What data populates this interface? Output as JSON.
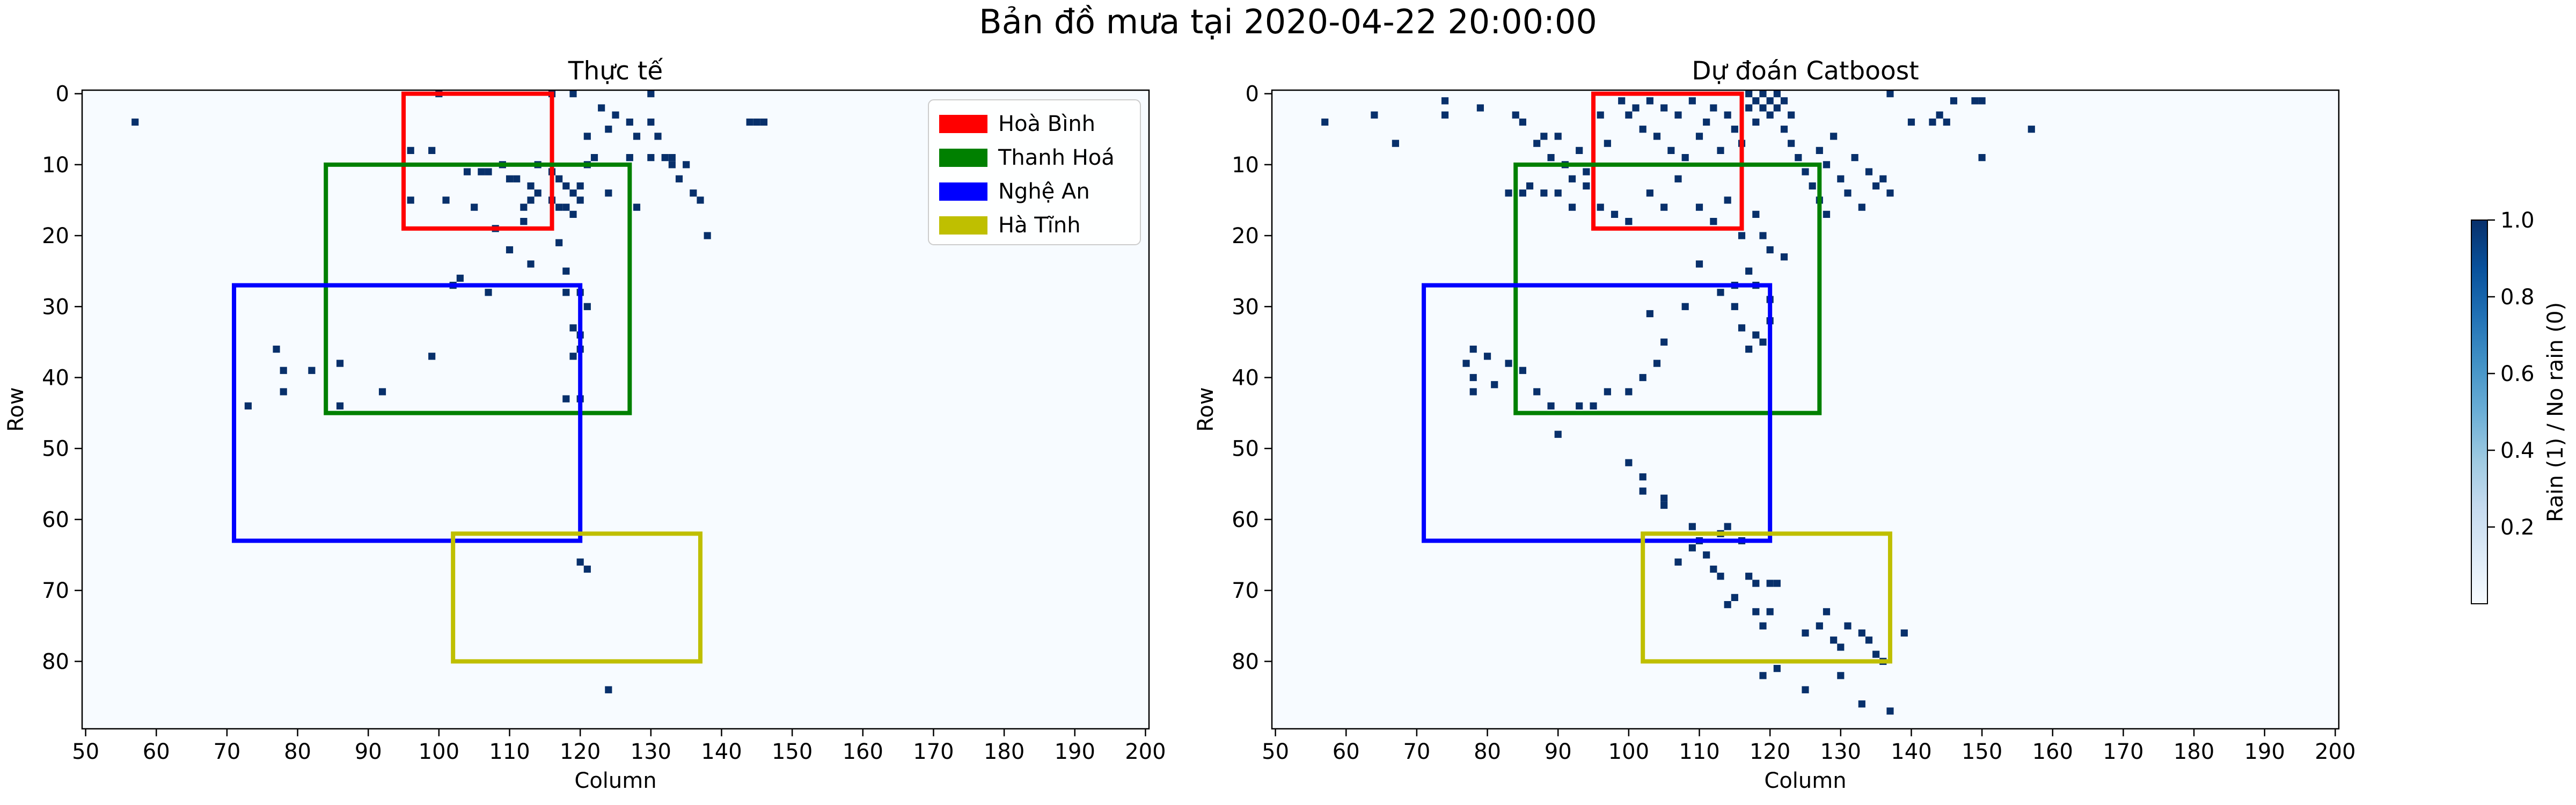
{
  "figure_title": "Bản đồ mưa tại 2020-04-22 20:00:00",
  "colors": {
    "rain": "#08306b",
    "no_rain": "#f7fbff",
    "colorbar_stops": [
      "#f7fbff",
      "#deebf7",
      "#c6dbef",
      "#9ecae1",
      "#6baed6",
      "#4292c6",
      "#2171b5",
      "#08519c",
      "#08306b"
    ]
  },
  "regions": [
    {
      "name": "Hoà Bình",
      "color": "#ff0000",
      "x0": 95,
      "x1": 116,
      "y0": 0,
      "y1": 19
    },
    {
      "name": "Thanh Hoá",
      "color": "#008000",
      "x0": 84,
      "x1": 127,
      "y0": 10,
      "y1": 45
    },
    {
      "name": "Nghệ An",
      "color": "#0000ff",
      "x0": 71,
      "x1": 120,
      "y0": 27,
      "y1": 63
    },
    {
      "name": "Hà Tĩnh",
      "color": "#bfbf00",
      "x0": 102,
      "x1": 137,
      "y0": 62,
      "y1": 80
    }
  ],
  "chart_data": [
    {
      "type": "heatmap",
      "title": "Thực tế",
      "xlabel": "Column",
      "ylabel": "Row",
      "xlim": [
        49.5,
        200.5
      ],
      "ylim": [
        89.5,
        -0.5
      ],
      "xticks": [
        50,
        60,
        70,
        80,
        90,
        100,
        110,
        120,
        130,
        140,
        150,
        160,
        170,
        180,
        190,
        200
      ],
      "yticks": [
        0,
        10,
        20,
        30,
        40,
        50,
        60,
        70,
        80
      ],
      "legend": "top-right",
      "rain_cells": [
        [
          57,
          4
        ],
        [
          100,
          0
        ],
        [
          116,
          0
        ],
        [
          119,
          0
        ],
        [
          121,
          6
        ],
        [
          123,
          2
        ],
        [
          124,
          5
        ],
        [
          124,
          14
        ],
        [
          125,
          3
        ],
        [
          127,
          4
        ],
        [
          127,
          9
        ],
        [
          128,
          6
        ],
        [
          128,
          16
        ],
        [
          130,
          0
        ],
        [
          130,
          9
        ],
        [
          130,
          4
        ],
        [
          131,
          6
        ],
        [
          132,
          9
        ],
        [
          133,
          10
        ],
        [
          133,
          9
        ],
        [
          134,
          12
        ],
        [
          135,
          10
        ],
        [
          136,
          14
        ],
        [
          137,
          15
        ],
        [
          138,
          20
        ],
        [
          144,
          4
        ],
        [
          145,
          4
        ],
        [
          146,
          4
        ],
        [
          96,
          8
        ],
        [
          99,
          8
        ],
        [
          96,
          15
        ],
        [
          101,
          15
        ],
        [
          104,
          11
        ],
        [
          106,
          11
        ],
        [
          107,
          11
        ],
        [
          109,
          10
        ],
        [
          110,
          12
        ],
        [
          111,
          12
        ],
        [
          113,
          13
        ],
        [
          113,
          15
        ],
        [
          114,
          14
        ],
        [
          114,
          10
        ],
        [
          116,
          11
        ],
        [
          117,
          16
        ],
        [
          118,
          13
        ],
        [
          119,
          14
        ],
        [
          120,
          13
        ],
        [
          121,
          10
        ],
        [
          122,
          9
        ],
        [
          119,
          17
        ],
        [
          118,
          16
        ],
        [
          116,
          15
        ],
        [
          112,
          16
        ],
        [
          120,
          15
        ],
        [
          117,
          12
        ],
        [
          105,
          16
        ],
        [
          108,
          19
        ],
        [
          112,
          18
        ],
        [
          102,
          27
        ],
        [
          103,
          26
        ],
        [
          107,
          28
        ],
        [
          110,
          22
        ],
        [
          113,
          24
        ],
        [
          117,
          21
        ],
        [
          118,
          25
        ],
        [
          118,
          28
        ],
        [
          119,
          33
        ],
        [
          120,
          28
        ],
        [
          120,
          34
        ],
        [
          119,
          37
        ],
        [
          120,
          36
        ],
        [
          121,
          30
        ],
        [
          118,
          43
        ],
        [
          120,
          43
        ],
        [
          77,
          36
        ],
        [
          78,
          39
        ],
        [
          78,
          42
        ],
        [
          73,
          44
        ],
        [
          82,
          39
        ],
        [
          86,
          38
        ],
        [
          86,
          44
        ],
        [
          92,
          42
        ],
        [
          99,
          37
        ],
        [
          120,
          66
        ],
        [
          121,
          67
        ],
        [
          124,
          84
        ]
      ]
    },
    {
      "type": "heatmap",
      "title": "Dự đoán Catboost",
      "xlabel": "Column",
      "ylabel": "Row",
      "xlim": [
        49.5,
        200.5
      ],
      "ylim": [
        89.5,
        -0.5
      ],
      "xticks": [
        50,
        60,
        70,
        80,
        90,
        100,
        110,
        120,
        130,
        140,
        150,
        160,
        170,
        180,
        190,
        200
      ],
      "yticks": [
        0,
        10,
        20,
        30,
        40,
        50,
        60,
        70,
        80
      ],
      "rain_cells": [
        [
          57,
          4
        ],
        [
          64,
          3
        ],
        [
          67,
          7
        ],
        [
          74,
          1
        ],
        [
          74,
          3
        ],
        [
          79,
          2
        ],
        [
          84,
          3
        ],
        [
          85,
          4
        ],
        [
          87,
          7
        ],
        [
          88,
          6
        ],
        [
          89,
          9
        ],
        [
          90,
          6
        ],
        [
          91,
          10
        ],
        [
          92,
          12
        ],
        [
          93,
          8
        ],
        [
          94,
          11
        ],
        [
          96,
          3
        ],
        [
          97,
          7
        ],
        [
          99,
          1
        ],
        [
          100,
          3
        ],
        [
          101,
          2
        ],
        [
          102,
          5
        ],
        [
          103,
          1
        ],
        [
          104,
          6
        ],
        [
          105,
          2
        ],
        [
          106,
          8
        ],
        [
          107,
          3
        ],
        [
          108,
          9
        ],
        [
          109,
          1
        ],
        [
          110,
          6
        ],
        [
          111,
          4
        ],
        [
          112,
          2
        ],
        [
          113,
          8
        ],
        [
          114,
          3
        ],
        [
          115,
          5
        ],
        [
          116,
          7
        ],
        [
          117,
          0
        ],
        [
          117,
          2
        ],
        [
          118,
          1
        ],
        [
          118,
          4
        ],
        [
          119,
          0
        ],
        [
          119,
          2
        ],
        [
          120,
          1
        ],
        [
          120,
          3
        ],
        [
          121,
          0
        ],
        [
          121,
          2
        ],
        [
          122,
          1
        ],
        [
          122,
          5
        ],
        [
          123,
          3
        ],
        [
          123,
          7
        ],
        [
          124,
          9
        ],
        [
          125,
          11
        ],
        [
          126,
          13
        ],
        [
          127,
          8
        ],
        [
          127,
          15
        ],
        [
          128,
          10
        ],
        [
          128,
          17
        ],
        [
          129,
          6
        ],
        [
          130,
          12
        ],
        [
          131,
          14
        ],
        [
          132,
          9
        ],
        [
          133,
          16
        ],
        [
          134,
          11
        ],
        [
          135,
          13
        ],
        [
          136,
          12
        ],
        [
          137,
          0
        ],
        [
          137,
          14
        ],
        [
          140,
          4
        ],
        [
          143,
          4
        ],
        [
          144,
          3
        ],
        [
          145,
          4
        ],
        [
          146,
          1
        ],
        [
          149,
          1
        ],
        [
          150,
          1
        ],
        [
          150,
          9
        ],
        [
          157,
          5
        ],
        [
          83,
          14
        ],
        [
          85,
          14
        ],
        [
          86,
          13
        ],
        [
          88,
          14
        ],
        [
          90,
          14
        ],
        [
          92,
          16
        ],
        [
          94,
          13
        ],
        [
          96,
          16
        ],
        [
          98,
          17
        ],
        [
          100,
          18
        ],
        [
          103,
          14
        ],
        [
          105,
          16
        ],
        [
          107,
          12
        ],
        [
          110,
          16
        ],
        [
          112,
          18
        ],
        [
          114,
          15
        ],
        [
          116,
          20
        ],
        [
          118,
          17
        ],
        [
          119,
          20
        ],
        [
          120,
          22
        ],
        [
          122,
          23
        ],
        [
          117,
          25
        ],
        [
          115,
          27
        ],
        [
          118,
          27
        ],
        [
          120,
          29
        ],
        [
          113,
          28
        ],
        [
          115,
          30
        ],
        [
          116,
          33
        ],
        [
          118,
          34
        ],
        [
          120,
          32
        ],
        [
          119,
          35
        ],
        [
          117,
          36
        ],
        [
          110,
          24
        ],
        [
          108,
          30
        ],
        [
          103,
          31
        ],
        [
          105,
          35
        ],
        [
          104,
          38
        ],
        [
          102,
          40
        ],
        [
          100,
          42
        ],
        [
          97,
          42
        ],
        [
          95,
          44
        ],
        [
          93,
          44
        ],
        [
          90,
          48
        ],
        [
          89,
          44
        ],
        [
          87,
          42
        ],
        [
          85,
          39
        ],
        [
          83,
          38
        ],
        [
          80,
          37
        ],
        [
          78,
          36
        ],
        [
          77,
          38
        ],
        [
          78,
          40
        ],
        [
          78,
          42
        ],
        [
          81,
          41
        ],
        [
          100,
          52
        ],
        [
          102,
          54
        ],
        [
          102,
          56
        ],
        [
          105,
          57
        ],
        [
          105,
          58
        ],
        [
          109,
          61
        ],
        [
          114,
          61
        ],
        [
          116,
          63
        ],
        [
          113,
          62
        ],
        [
          110,
          63
        ],
        [
          111,
          65
        ],
        [
          107,
          66
        ],
        [
          109,
          64
        ],
        [
          112,
          67
        ],
        [
          113,
          68
        ],
        [
          114,
          72
        ],
        [
          115,
          71
        ],
        [
          117,
          68
        ],
        [
          118,
          69
        ],
        [
          120,
          69
        ],
        [
          121,
          69
        ],
        [
          118,
          73
        ],
        [
          119,
          75
        ],
        [
          120,
          73
        ],
        [
          125,
          76
        ],
        [
          127,
          75
        ],
        [
          129,
          77
        ],
        [
          131,
          75
        ],
        [
          133,
          76
        ],
        [
          134,
          77
        ],
        [
          128,
          73
        ],
        [
          130,
          78
        ],
        [
          135,
          79
        ],
        [
          136,
          80
        ],
        [
          139,
          76
        ],
        [
          119,
          82
        ],
        [
          121,
          81
        ],
        [
          125,
          84
        ],
        [
          130,
          82
        ],
        [
          133,
          86
        ],
        [
          137,
          87
        ]
      ]
    }
  ],
  "colorbar": {
    "label": "Rain (1) / No rain (0)",
    "min": 0,
    "max": 1,
    "ticks": [
      "0.2",
      "0.4",
      "0.6",
      "0.8",
      "1.0"
    ]
  }
}
